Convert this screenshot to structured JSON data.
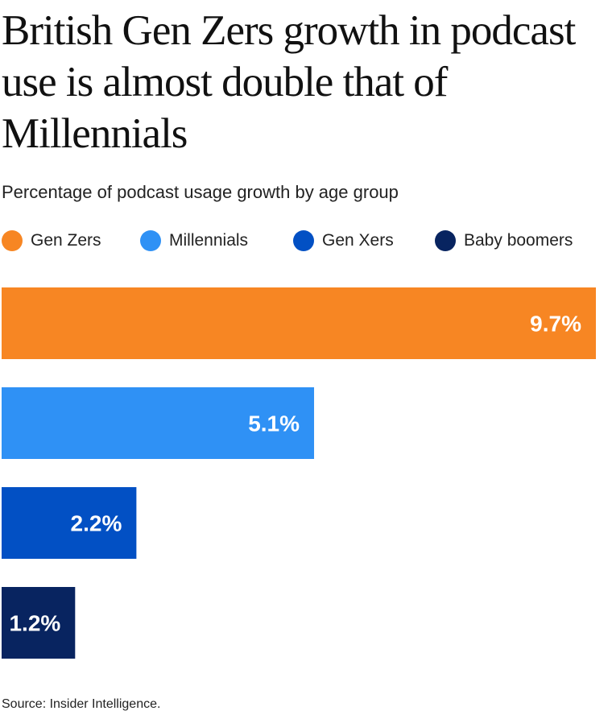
{
  "chart_data": {
    "type": "bar",
    "orientation": "horizontal",
    "title": "British Gen Zers growth in podcast use is almost double that of Millennials",
    "subtitle": "Percentage of podcast usage growth by age group",
    "categories": [
      "Gen Zers",
      "Millennials",
      "Gen Xers",
      "Baby boomers"
    ],
    "values": [
      9.7,
      5.1,
      2.2,
      1.2
    ],
    "value_labels": [
      "9.7%",
      "5.1%",
      "2.2%",
      "1.2%"
    ],
    "colors": [
      "#f78623",
      "#2f91f5",
      "#0250c4",
      "#082460"
    ],
    "xlim": [
      0,
      9.7
    ],
    "grid": false,
    "legend": {
      "placement": "top",
      "items": [
        {
          "label": "Gen Zers",
          "color": "#f78623"
        },
        {
          "label": "Millennials",
          "color": "#2f91f5"
        },
        {
          "label": "Gen Xers",
          "color": "#0250c4"
        },
        {
          "label": "Baby boomers",
          "color": "#082460"
        }
      ]
    },
    "source": "Source: Insider Intelligence."
  }
}
